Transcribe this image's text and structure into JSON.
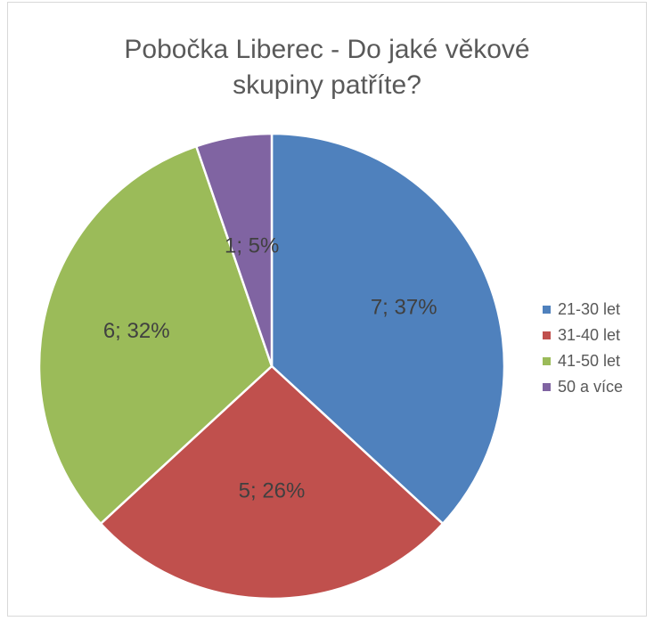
{
  "chart_data": {
    "type": "pie",
    "title_lines": [
      "Pobočka Liberec - Do jaké věkové",
      "skupiny patříte?"
    ],
    "categories": [
      "21-30 let",
      "31-40 let",
      "41-50 let",
      "50 a více"
    ],
    "values": [
      7,
      5,
      6,
      1
    ],
    "percent_labels": [
      "37%",
      "26%",
      "32%",
      "5%"
    ],
    "data_labels": [
      "7; 37%",
      "5; 26%",
      "6; 32%",
      "1; 5%"
    ],
    "colors": [
      "#4f81bd",
      "#c0504d",
      "#9bbb59",
      "#8064a2"
    ],
    "legend_position": "right",
    "start": "12 o'clock",
    "direction": "clockwise"
  }
}
